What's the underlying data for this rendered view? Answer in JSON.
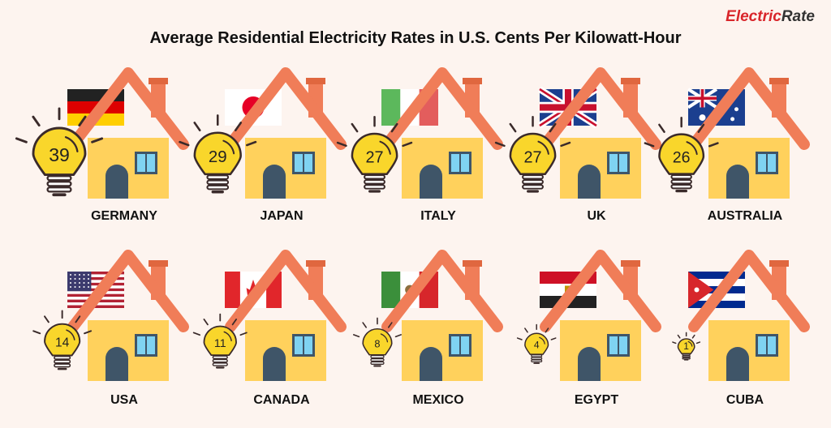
{
  "logo": {
    "part1": "Electric",
    "part2": "Rate"
  },
  "chart_data": {
    "type": "pictograph",
    "title": "Average Residential Electricity Rates in U.S. Cents Per Kilowatt-Hour",
    "unit": "U.S. cents per kilowatt-hour",
    "categories": [
      "GERMANY",
      "JAPAN",
      "ITALY",
      "UK",
      "AUSTRALIA",
      "USA",
      "CANADA",
      "MEXICO",
      "EGYPT",
      "CUBA"
    ],
    "values": [
      39,
      29,
      27,
      27,
      26,
      14,
      11,
      8,
      4,
      1
    ],
    "layout_rows": 2,
    "layout_cols": 5
  },
  "colors": {
    "background": "#fdf4ef",
    "bulb": "#f9d62b",
    "bulb_outline": "#3a2a2a",
    "roof": "#f07d58",
    "wall": "#ffd15c",
    "door": "#3f5568",
    "window": "#7fd3f2",
    "chimney": "#f07d58"
  }
}
